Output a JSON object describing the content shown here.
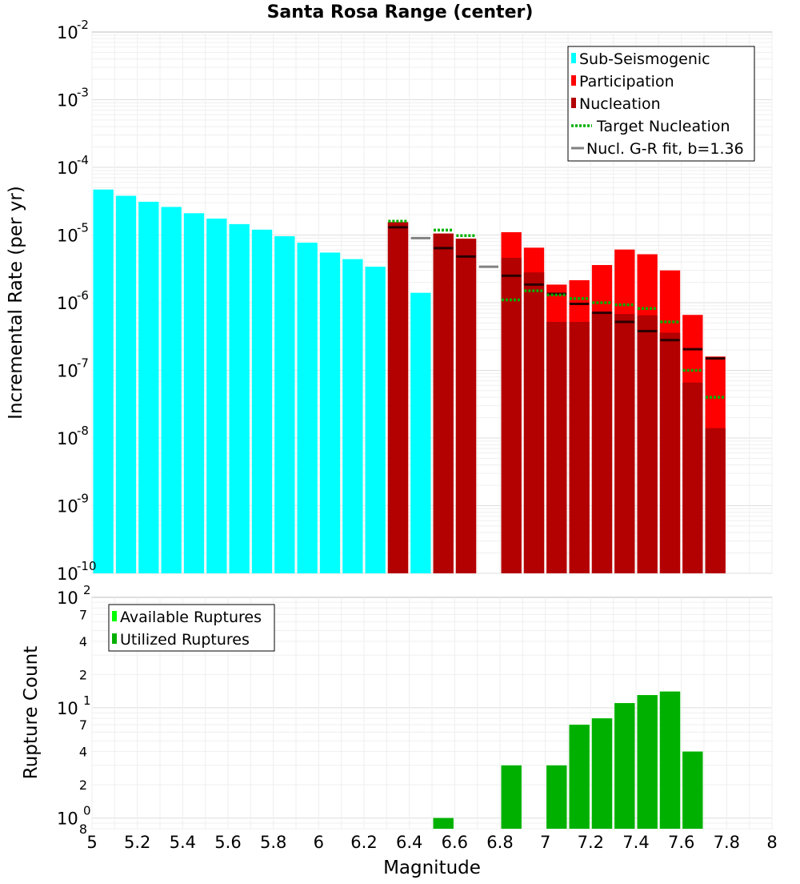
{
  "chart_data": [
    {
      "type": "bar",
      "title": "Santa Rosa Range (center)",
      "ylabel": "Incremental Rate (per yr)",
      "yscale": "log",
      "ylim": [
        1e-10,
        0.01
      ],
      "xlim": [
        5,
        8
      ],
      "y_ticks": [
        {
          "base": "10",
          "exp": "-10",
          "value": 1e-10
        },
        {
          "base": "10",
          "exp": "-9",
          "value": 1e-09
        },
        {
          "base": "10",
          "exp": "-8",
          "value": 1e-08
        },
        {
          "base": "10",
          "exp": "-7",
          "value": 1e-07
        },
        {
          "base": "10",
          "exp": "-6",
          "value": 1e-06
        },
        {
          "base": "10",
          "exp": "-5",
          "value": 1e-05
        },
        {
          "base": "10",
          "exp": "-4",
          "value": 0.0001
        },
        {
          "base": "10",
          "exp": "-3",
          "value": 0.001
        },
        {
          "base": "10",
          "exp": "-2",
          "value": 0.01
        }
      ],
      "grid": true,
      "legend_position": "top-right",
      "legend": [
        {
          "label": "Sub-Seismogenic",
          "kind": "bar",
          "color": "#00ffff"
        },
        {
          "label": "Participation",
          "kind": "bar",
          "color": "#ff0000"
        },
        {
          "label": "Nucleation",
          "kind": "bar",
          "color": "#b30000"
        },
        {
          "label": "Target Nucleation",
          "kind": "dotted",
          "color": "#00b000"
        },
        {
          "label": "Nucl. G-R fit, b=1.36",
          "kind": "line",
          "color": "#808080"
        }
      ],
      "bin_width": 0.1,
      "series": [
        {
          "name": "Sub-Seismogenic",
          "color": "#00ffff",
          "x": [
            5.05,
            5.15,
            5.25,
            5.35,
            5.45,
            5.55,
            5.65,
            5.75,
            5.85,
            5.95,
            6.05,
            6.15,
            6.25,
            6.45
          ],
          "values": [
            4.7e-05,
            3.8e-05,
            3.1e-05,
            2.6e-05,
            2.1e-05,
            1.75e-05,
            1.45e-05,
            1.2e-05,
            9.6e-06,
            7.7e-06,
            5.5e-06,
            4.4e-06,
            3.4e-06,
            1.4e-06
          ]
        },
        {
          "name": "Participation",
          "color": "#ff0000",
          "x": [
            6.35,
            6.55,
            6.65,
            6.85,
            6.95,
            7.05,
            7.15,
            7.25,
            7.35,
            7.45,
            7.55,
            7.65,
            7.75
          ],
          "values": [
            1.55e-05,
            1.05e-05,
            8.8e-06,
            1.1e-05,
            6.5e-06,
            1.85e-06,
            2.15e-06,
            3.6e-06,
            6.1e-06,
            5.2e-06,
            3e-06,
            6.6e-07,
            1.6e-07
          ]
        },
        {
          "name": "Nucleation",
          "color": "#b30000",
          "x": [
            6.35,
            6.55,
            6.65,
            6.85,
            6.95,
            7.05,
            7.15,
            7.25,
            7.35,
            7.45,
            7.55,
            7.65,
            7.75
          ],
          "values": [
            1.55e-05,
            1.05e-05,
            8.8e-06,
            4.6e-06,
            2.8e-06,
            5.2e-07,
            5.2e-07,
            7.3e-07,
            6.8e-07,
            6.5e-07,
            3.6e-07,
            6.6e-08,
            1.4e-08
          ]
        },
        {
          "name": "Target Nucleation",
          "color": "#00b000",
          "x": [
            6.35,
            6.55,
            6.65,
            6.85,
            6.95,
            7.05,
            7.15,
            7.25,
            7.35,
            7.45,
            7.55,
            7.65,
            7.75
          ],
          "values": [
            1.6e-05,
            1.18e-05,
            9.8e-06,
            1.1e-06,
            1.5e-06,
            1.3e-06,
            1.15e-06,
            1e-06,
            9.3e-07,
            8.2e-07,
            5.2e-07,
            1e-07,
            4e-08
          ]
        },
        {
          "name": "Nucl. G-R fit, b=1.36",
          "color": "#808080",
          "x": [
            6.35,
            6.45,
            6.55,
            6.65,
            6.75,
            6.85,
            6.95,
            7.05,
            7.15,
            7.25,
            7.35,
            7.45,
            7.55,
            7.65,
            7.75
          ],
          "values": [
            1.3e-05,
            9e-06,
            6.4e-06,
            4.8e-06,
            3.4e-06,
            2.5e-06,
            1.85e-06,
            1.35e-06,
            9.6e-07,
            7.1e-07,
            5.2e-07,
            3.8e-07,
            2.8e-07,
            2.05e-07,
            1.5e-07
          ]
        }
      ]
    },
    {
      "type": "bar",
      "xlabel": "Magnitude",
      "ylabel": "Rupture Count",
      "yscale": "log",
      "ylim": [
        0.8,
        100
      ],
      "xlim": [
        5,
        8
      ],
      "x_ticks": [
        "5",
        "5.2",
        "5.4",
        "5.6",
        "5.8",
        "6",
        "6.2",
        "6.4",
        "6.6",
        "6.8",
        "7",
        "7.2",
        "7.4",
        "7.6",
        "7.8",
        "8"
      ],
      "y_major_ticks": [
        {
          "base": "10",
          "exp": "0",
          "value": 1
        },
        {
          "base": "10",
          "exp": "1",
          "value": 10
        },
        {
          "base": "10",
          "exp": "2",
          "value": 100
        }
      ],
      "y_minor_ticks": [
        {
          "label": "8",
          "value": 0.8
        },
        {
          "label": "2",
          "value": 2
        },
        {
          "label": "4",
          "value": 4
        },
        {
          "label": "7",
          "value": 7
        },
        {
          "label": "2",
          "value": 20
        },
        {
          "label": "4",
          "value": 40
        },
        {
          "label": "7",
          "value": 70
        }
      ],
      "grid": true,
      "legend_position": "top-left",
      "legend": [
        {
          "label": "Available Ruptures",
          "color": "#00ff00"
        },
        {
          "label": "Utilized Ruptures",
          "color": "#00b000"
        }
      ],
      "bin_width": 0.1,
      "series": [
        {
          "name": "Available Ruptures",
          "color": "#00ff00",
          "x": [
            6.55,
            6.85,
            7.05,
            7.15,
            7.25,
            7.35,
            7.45,
            7.55,
            7.65
          ],
          "values": [
            1,
            3,
            3,
            7,
            8,
            11,
            13,
            14,
            4
          ]
        },
        {
          "name": "Utilized Ruptures",
          "color": "#00b000",
          "x": [
            6.55,
            6.85,
            7.05,
            7.15,
            7.25,
            7.35,
            7.45,
            7.55,
            7.65
          ],
          "values": [
            1,
            3,
            3,
            7,
            8,
            11,
            13,
            14,
            4
          ]
        }
      ]
    }
  ]
}
